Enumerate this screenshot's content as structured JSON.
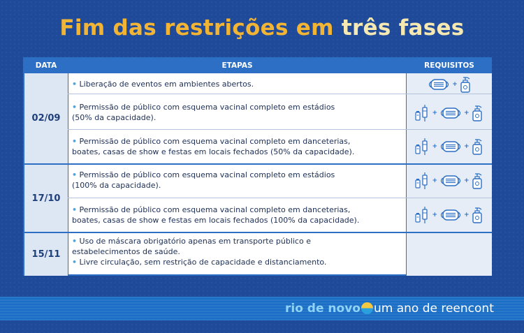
{
  "title": {
    "part1": "Fim das restrições em ",
    "part2": "três fases"
  },
  "headers": {
    "data": "DATA",
    "etapas": "ETAPAS",
    "requisitos": "REQUISITOS"
  },
  "rows": [
    {
      "line1": "Liberação de eventos em ambientes abertos.",
      "line2": "",
      "requirements": [
        "mask-icon",
        "hand-sanitizer-icon"
      ]
    },
    {
      "line1": "Permissão de público com esquema vacinal completo em estádios",
      "line2": "(50% da capacidade).",
      "requirements": [
        "vaccine-icon",
        "mask-icon",
        "hand-sanitizer-icon"
      ]
    },
    {
      "line1": "Permissão de público com esquema vacinal completo em danceterias,",
      "line2": "boates, casas de show e festas em locais fechados (50% da capacidade).",
      "requirements": [
        "vaccine-icon",
        "mask-icon",
        "hand-sanitizer-icon"
      ]
    },
    {
      "line1": "Permissão de público com esquema vacinal completo em estádios",
      "line2": "(100% da capacidade).",
      "requirements": [
        "vaccine-icon",
        "mask-icon",
        "hand-sanitizer-icon"
      ]
    },
    {
      "line1": "Permissão de público com esquema vacinal completo em danceterias,",
      "line2": "boates, casas de show e festas em locais fechados (100% da capacidade).",
      "requirements": [
        "vaccine-icon",
        "mask-icon",
        "hand-sanitizer-icon"
      ]
    },
    {
      "line1": "Uso de máscara obrigatório apenas em transporte público e",
      "line2": "estabelecimentos de saúde.",
      "line3": "Livre circulação, sem restrição de capacidade e distanciamento.",
      "requirements": []
    }
  ],
  "dates": [
    "02/09",
    "17/10",
    "15/11"
  ],
  "footer": {
    "brand": "rio de novo",
    "tagline": "um ano de reencont"
  },
  "colors": {
    "background": "#1f4a9a",
    "title_orange": "#f2b434",
    "title_cream": "#f5e8b0",
    "header_blue": "#2c6fc4"
  }
}
